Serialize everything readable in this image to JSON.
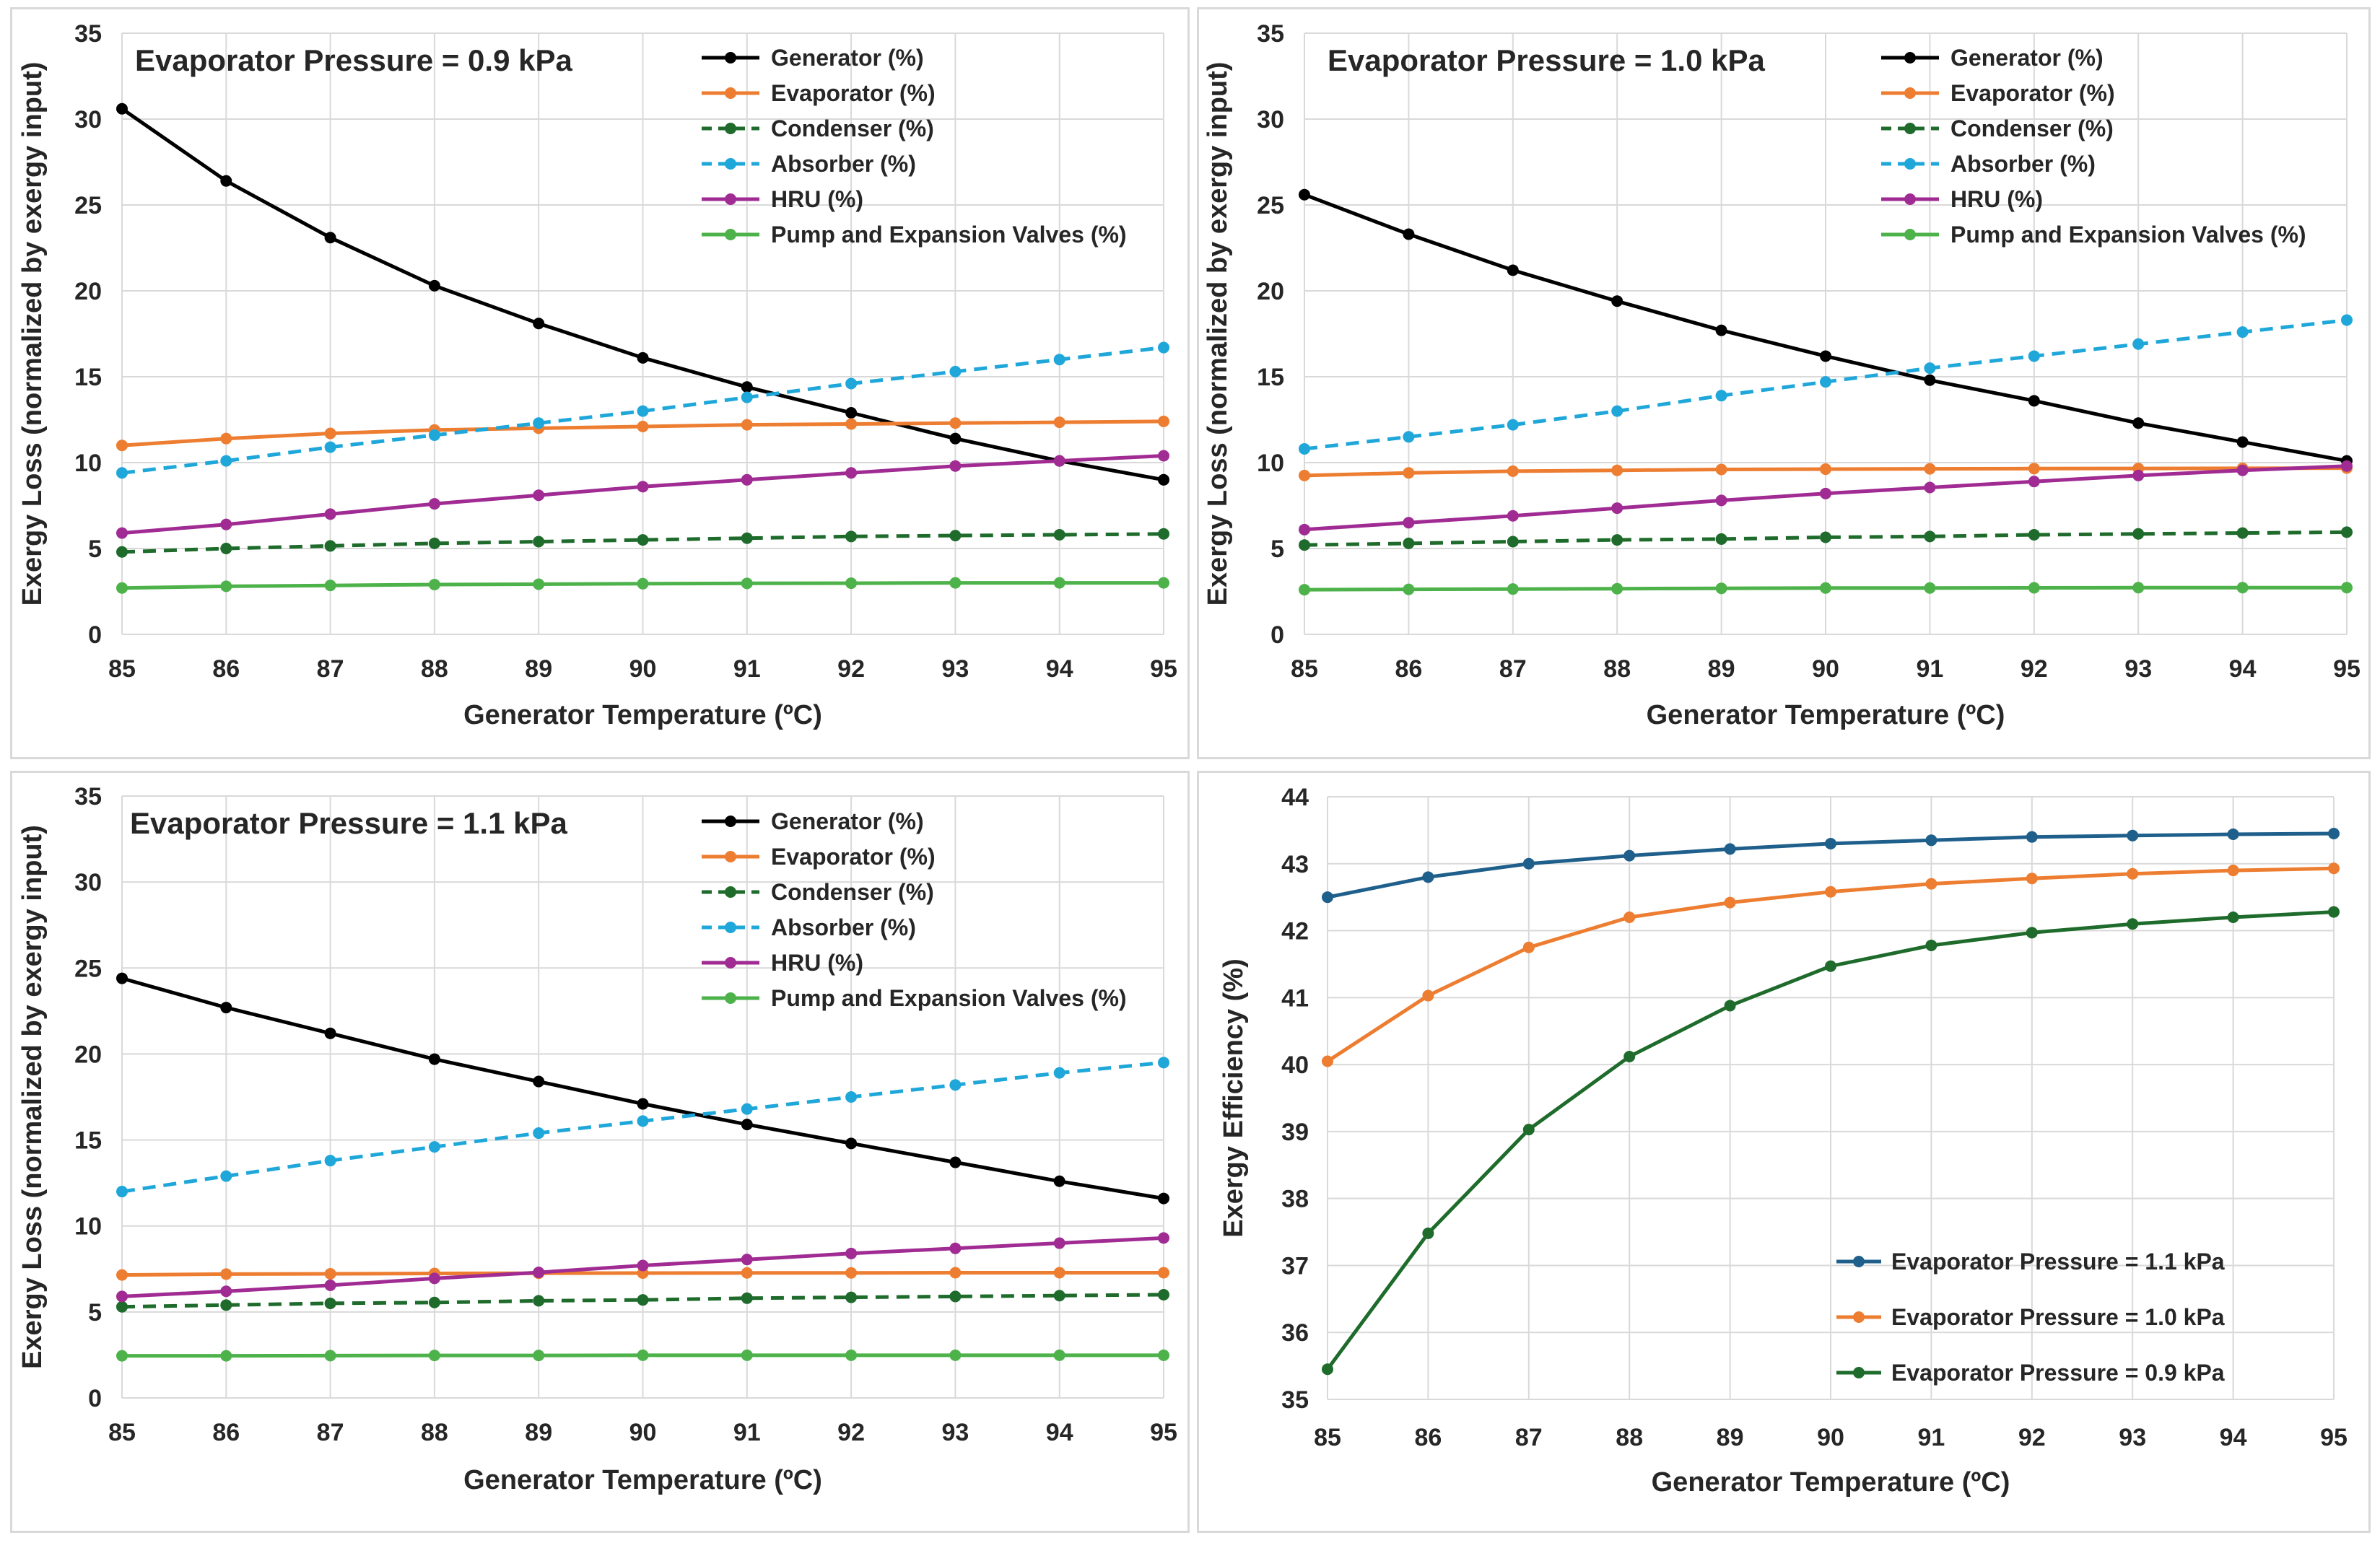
{
  "chart_data": [
    {
      "type": "line",
      "annotation": "Evaporator Pressure = 0.9 kPa",
      "xlabel": "Generator Temperature (ºC)",
      "ylabel": "Exergy Loss (normalized by exergy input)",
      "x": [
        85,
        86,
        87,
        88,
        89,
        90,
        91,
        92,
        93,
        94,
        95
      ],
      "xlim": [
        85,
        95
      ],
      "ylim": [
        0,
        35
      ],
      "yticks": [
        0,
        5,
        10,
        15,
        20,
        25,
        30,
        35
      ],
      "grid": true,
      "legend_position": "top-right",
      "series": [
        {
          "name": "Generator (%)",
          "color": "#000000",
          "dash": false,
          "values": [
            30.6,
            26.4,
            23.1,
            20.3,
            18.1,
            16.1,
            14.4,
            12.9,
            11.4,
            10.1,
            9.0
          ]
        },
        {
          "name": "Evaporator (%)",
          "color": "#ed7d31",
          "dash": false,
          "values": [
            11.0,
            11.4,
            11.7,
            11.9,
            12.0,
            12.1,
            12.2,
            12.25,
            12.3,
            12.35,
            12.4
          ]
        },
        {
          "name": "Condenser (%)",
          "color": "#1e6b2c",
          "dash": true,
          "values": [
            4.8,
            5.0,
            5.15,
            5.3,
            5.4,
            5.5,
            5.6,
            5.7,
            5.75,
            5.8,
            5.85
          ]
        },
        {
          "name": "Absorber (%)",
          "color": "#1fa7da",
          "dash": true,
          "values": [
            9.4,
            10.1,
            10.9,
            11.6,
            12.3,
            13.0,
            13.8,
            14.6,
            15.3,
            16.0,
            16.7
          ]
        },
        {
          "name": "HRU (%)",
          "color": "#a02b93",
          "dash": false,
          "values": [
            5.9,
            6.4,
            7.0,
            7.6,
            8.1,
            8.6,
            9.0,
            9.4,
            9.8,
            10.1,
            10.4
          ]
        },
        {
          "name": "Pump and Expansion Valves (%)",
          "color": "#4eb24b",
          "dash": false,
          "values": [
            2.7,
            2.8,
            2.85,
            2.9,
            2.92,
            2.95,
            2.97,
            2.98,
            3.0,
            3.0,
            3.0
          ]
        }
      ]
    },
    {
      "type": "line",
      "annotation": "Evaporator Pressure = 1.0 kPa",
      "xlabel": "Generator Temperature (ºC)",
      "ylabel": "Exergy Loss (normalized by exergy input)",
      "x": [
        85,
        86,
        87,
        88,
        89,
        90,
        91,
        92,
        93,
        94,
        95
      ],
      "xlim": [
        85,
        95
      ],
      "ylim": [
        0,
        35
      ],
      "yticks": [
        0,
        5,
        10,
        15,
        20,
        25,
        30,
        35
      ],
      "grid": true,
      "legend_position": "top-right",
      "series": [
        {
          "name": "Generator (%)",
          "color": "#000000",
          "dash": false,
          "values": [
            25.6,
            23.3,
            21.2,
            19.4,
            17.7,
            16.2,
            14.8,
            13.6,
            12.3,
            11.2,
            10.1
          ]
        },
        {
          "name": "Evaporator (%)",
          "color": "#ed7d31",
          "dash": false,
          "values": [
            9.25,
            9.4,
            9.5,
            9.55,
            9.6,
            9.62,
            9.64,
            9.65,
            9.66,
            9.67,
            9.68
          ]
        },
        {
          "name": "Condenser (%)",
          "color": "#1e6b2c",
          "dash": true,
          "values": [
            5.2,
            5.3,
            5.4,
            5.5,
            5.55,
            5.65,
            5.7,
            5.8,
            5.85,
            5.9,
            5.95
          ]
        },
        {
          "name": "Absorber (%)",
          "color": "#1fa7da",
          "dash": true,
          "values": [
            10.8,
            11.5,
            12.2,
            13.0,
            13.9,
            14.7,
            15.5,
            16.2,
            16.9,
            17.6,
            18.3
          ]
        },
        {
          "name": "HRU (%)",
          "color": "#a02b93",
          "dash": false,
          "values": [
            6.1,
            6.5,
            6.9,
            7.35,
            7.8,
            8.2,
            8.55,
            8.9,
            9.25,
            9.55,
            9.8
          ]
        },
        {
          "name": "Pump and Expansion Valves (%)",
          "color": "#4eb24b",
          "dash": false,
          "values": [
            2.6,
            2.62,
            2.64,
            2.66,
            2.68,
            2.7,
            2.7,
            2.71,
            2.72,
            2.72,
            2.72
          ]
        }
      ]
    },
    {
      "type": "line",
      "annotation": "Evaporator Pressure = 1.1 kPa",
      "xlabel": "Generator Temperature (ºC)",
      "ylabel": "Exergy Loss (normalized by exergy input)",
      "x": [
        85,
        86,
        87,
        88,
        89,
        90,
        91,
        92,
        93,
        94,
        95
      ],
      "xlim": [
        85,
        95
      ],
      "ylim": [
        0,
        35
      ],
      "yticks": [
        0,
        5,
        10,
        15,
        20,
        25,
        30,
        35
      ],
      "grid": true,
      "legend_position": "top-right",
      "series": [
        {
          "name": "Generator (%)",
          "color": "#000000",
          "dash": false,
          "values": [
            24.4,
            22.7,
            21.2,
            19.7,
            18.4,
            17.1,
            15.9,
            14.8,
            13.7,
            12.6,
            11.6
          ]
        },
        {
          "name": "Evaporator (%)",
          "color": "#ed7d31",
          "dash": false,
          "values": [
            7.15,
            7.2,
            7.22,
            7.24,
            7.25,
            7.26,
            7.27,
            7.27,
            7.28,
            7.28,
            7.28
          ]
        },
        {
          "name": "Condenser (%)",
          "color": "#1e6b2c",
          "dash": true,
          "values": [
            5.3,
            5.4,
            5.5,
            5.55,
            5.65,
            5.7,
            5.8,
            5.85,
            5.9,
            5.95,
            6.0
          ]
        },
        {
          "name": "Absorber (%)",
          "color": "#1fa7da",
          "dash": true,
          "values": [
            12.0,
            12.9,
            13.8,
            14.6,
            15.4,
            16.1,
            16.8,
            17.5,
            18.2,
            18.9,
            19.5
          ]
        },
        {
          "name": "HRU (%)",
          "color": "#a02b93",
          "dash": false,
          "values": [
            5.9,
            6.2,
            6.55,
            6.95,
            7.3,
            7.7,
            8.05,
            8.4,
            8.7,
            9.0,
            9.3
          ]
        },
        {
          "name": "Pump and Expansion Valves (%)",
          "color": "#4eb24b",
          "dash": false,
          "values": [
            2.45,
            2.45,
            2.46,
            2.47,
            2.47,
            2.48,
            2.48,
            2.48,
            2.48,
            2.48,
            2.48
          ]
        }
      ]
    },
    {
      "type": "line",
      "annotation": "",
      "xlabel": "Generator Temperature (ºC)",
      "ylabel": "Exergy Efficiency (%)",
      "x": [
        85,
        86,
        87,
        88,
        89,
        90,
        91,
        92,
        93,
        94,
        95
      ],
      "xlim": [
        85,
        95
      ],
      "ylim": [
        35,
        44
      ],
      "yticks": [
        35,
        36,
        37,
        38,
        39,
        40,
        41,
        42,
        43,
        44
      ],
      "grid": true,
      "legend_position": "bottom-right",
      "series": [
        {
          "name": "Evaporator Pressure = 1.1 kPa",
          "color": "#1f5f8b",
          "dash": false,
          "values": [
            42.5,
            42.8,
            43.0,
            43.12,
            43.22,
            43.3,
            43.35,
            43.4,
            43.42,
            43.44,
            43.45
          ]
        },
        {
          "name": "Evaporator Pressure = 1.0 kPa",
          "color": "#ed7d31",
          "dash": false,
          "values": [
            40.05,
            41.03,
            41.75,
            42.2,
            42.42,
            42.58,
            42.7,
            42.78,
            42.85,
            42.9,
            42.93
          ]
        },
        {
          "name": "Evaporator Pressure = 0.9 kPa",
          "color": "#1e6b2c",
          "dash": false,
          "values": [
            35.45,
            37.48,
            39.03,
            40.12,
            40.88,
            41.47,
            41.78,
            41.97,
            42.1,
            42.2,
            42.28
          ]
        }
      ]
    }
  ]
}
